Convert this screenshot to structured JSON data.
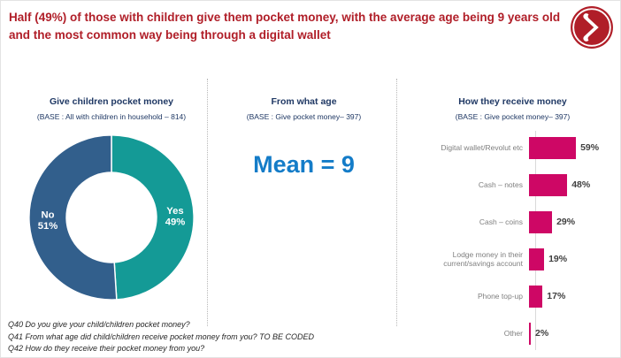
{
  "title": {
    "text": "Half (49%) of those with children give them pocket money, with the average age being 9 years old and the most common way being through a digital wallet"
  },
  "logo": {
    "icon": "double-chevron-right-icon",
    "color": "#B01E28"
  },
  "panels": {
    "pocket_money": {
      "title": "Give children pocket money",
      "base": "(BASE : All with children in household – 814)"
    },
    "age": {
      "title": "From what age",
      "base": "(BASE : Give pocket money– 397)",
      "stat": "Mean = 9"
    },
    "receive": {
      "title": "How they receive money",
      "base": "(BASE : Give pocket money– 397)"
    }
  },
  "chart_data": [
    {
      "type": "pie",
      "subtype": "donut",
      "title": "Give children pocket money",
      "base_note": "(BASE : All with children in household – 814)",
      "labels": [
        "Yes",
        "No"
      ],
      "values": [
        49,
        51
      ],
      "colors": [
        "#149A96",
        "#325F8C"
      ],
      "label_format": "percent",
      "start_angle_deg": 0,
      "direction": "clockwise"
    },
    {
      "type": "stat",
      "title": "From what age",
      "base_note": "(BASE : Give pocket money– 397)",
      "value_text": "Mean = 9",
      "mean": 9
    },
    {
      "type": "bar",
      "orientation": "horizontal",
      "title": "How they receive money",
      "base_note": "(BASE : Give pocket money– 397)",
      "categories": [
        "Digital wallet/Revolut etc",
        "Cash – notes",
        "Cash – coins",
        "Lodge money in their current/savings account",
        "Phone top-up",
        "Other"
      ],
      "values": [
        59,
        48,
        29,
        19,
        17,
        2
      ],
      "unit": "%",
      "bar_color": "#CE0765",
      "xlim": [
        0,
        60
      ],
      "grid": false,
      "legend": false
    }
  ],
  "footer": {
    "lines": [
      "Q40 Do you give your child/children pocket money?",
      "Q41 From what age did child/children receive pocket money from you? TO BE CODED",
      "Q42 How do they receive their pocket money from you?"
    ]
  },
  "colors": {
    "title_red": "#B01E28",
    "header_navy": "#1F3864",
    "mean_blue": "#147CC8",
    "slice_teal": "#149A96",
    "slice_blue": "#325F8C",
    "bar_magenta": "#CE0765"
  }
}
